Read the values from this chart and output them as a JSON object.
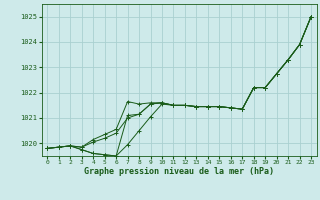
{
  "title": "Graphe pression niveau de la mer (hPa)",
  "background_color": "#ceeaea",
  "grid_color": "#aad0d0",
  "line_color": "#1a5c1a",
  "ylim": [
    1019.5,
    1025.5
  ],
  "xlim": [
    -0.5,
    23.5
  ],
  "yticks": [
    1020,
    1021,
    1022,
    1023,
    1024,
    1025
  ],
  "xticks": [
    0,
    1,
    2,
    3,
    4,
    5,
    6,
    7,
    8,
    9,
    10,
    11,
    12,
    13,
    14,
    15,
    16,
    17,
    18,
    19,
    20,
    21,
    22,
    23
  ],
  "series": [
    [
      1019.8,
      1019.85,
      1019.9,
      1019.85,
      1020.05,
      1020.2,
      1020.4,
      1021.0,
      1021.15,
      1021.55,
      1021.6,
      1021.5,
      1021.5,
      1021.45,
      1021.45,
      1021.45,
      1021.4,
      1021.35,
      1022.2,
      1022.2,
      1022.75,
      1023.3,
      1023.9,
      1025.0
    ],
    [
      1019.8,
      1019.85,
      1019.9,
      1019.75,
      1019.6,
      1019.55,
      1019.5,
      1019.95,
      1020.5,
      1021.05,
      1021.55,
      1021.5,
      1021.5,
      1021.45,
      1021.45,
      1021.45,
      1021.4,
      1021.35,
      1022.2,
      1022.2,
      1022.75,
      1023.3,
      1023.9,
      1025.0
    ],
    [
      1019.8,
      1019.85,
      1019.9,
      1019.75,
      1019.6,
      1019.55,
      1019.5,
      1021.1,
      1021.15,
      1021.55,
      1021.6,
      1021.5,
      1021.5,
      1021.45,
      1021.45,
      1021.45,
      1021.4,
      1021.35,
      1022.2,
      1022.2,
      1022.75,
      1023.3,
      1023.9,
      1025.0
    ],
    [
      1019.8,
      1019.85,
      1019.9,
      1019.85,
      1020.15,
      1020.35,
      1020.55,
      1021.65,
      1021.55,
      1021.6,
      1021.6,
      1021.5,
      1021.5,
      1021.45,
      1021.45,
      1021.45,
      1021.4,
      1021.35,
      1022.2,
      1022.2,
      1022.75,
      1023.3,
      1023.9,
      1025.0
    ]
  ]
}
